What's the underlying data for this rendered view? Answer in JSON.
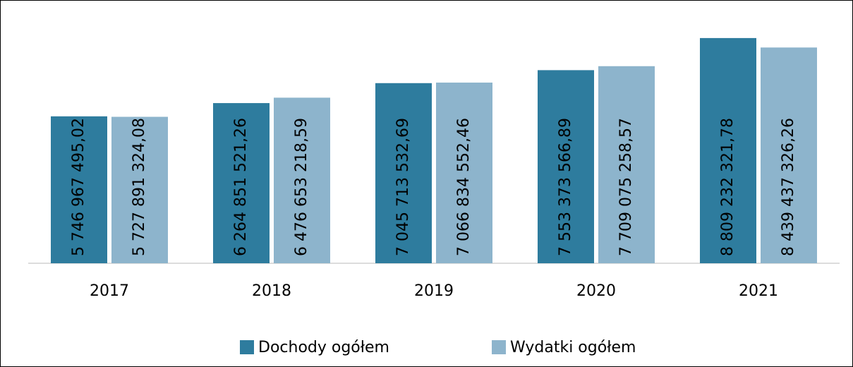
{
  "chart_data": {
    "type": "bar",
    "categories": [
      "2017",
      "2018",
      "2019",
      "2020",
      "2021"
    ],
    "series": [
      {
        "name": "Dochody ogółem",
        "color": "#2e7c9e",
        "values": [
          5746967495.02,
          6264851521.26,
          7045713532.69,
          7553373566.89,
          8809232321.78
        ],
        "value_labels": [
          "5 746 967 495,02",
          "6 264 851 521,26",
          "7 045 713 532,69",
          "7 553 373 566,89",
          "8 809 232 321,78"
        ]
      },
      {
        "name": "Wydatki ogółem",
        "color": "#8db4cc",
        "values": [
          5727891324.08,
          6476653218.59,
          7066834552.46,
          7709075258.57,
          8439437326.26
        ],
        "value_labels": [
          "5 727 891 324,08",
          "6 476 653 218,59",
          "7 066 834 552,46",
          "7 709 075 258,57",
          "8 439 437 326,26"
        ]
      }
    ],
    "ylim": [
      0,
      9000000000
    ],
    "legend": "bottom"
  }
}
